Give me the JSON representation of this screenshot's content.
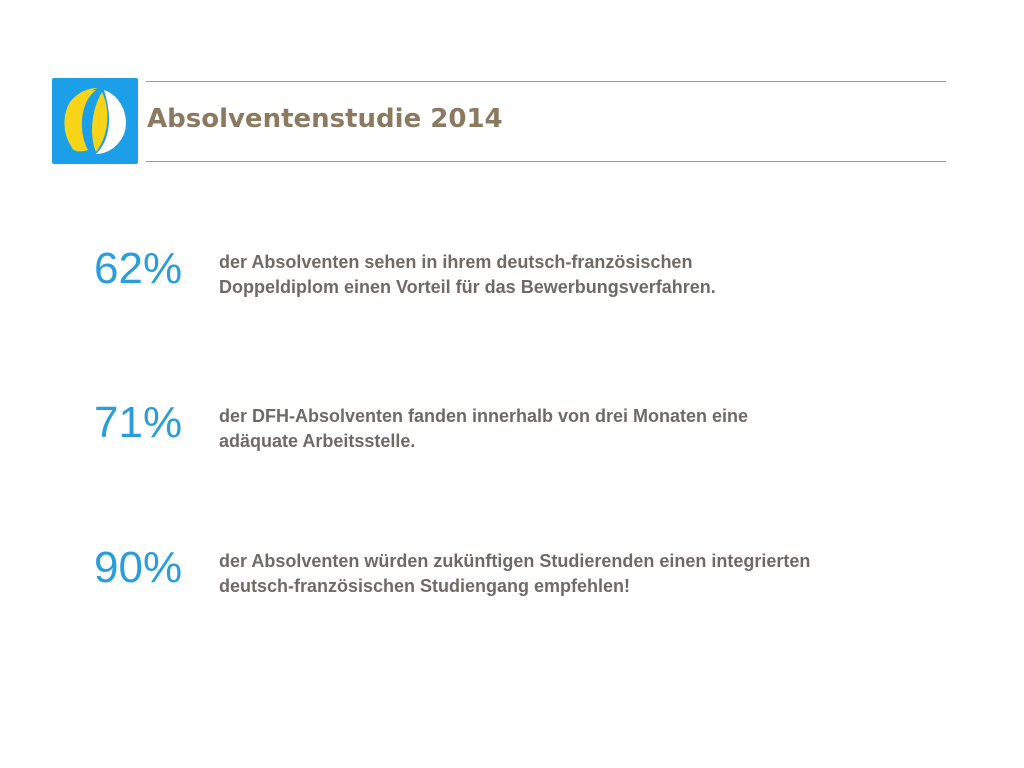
{
  "header": {
    "title": "Absolventenstudie 2014"
  },
  "logo": {
    "icon": "dfh-logo-icon",
    "colors": {
      "blue": "#1a9fe8",
      "yellow": "#f7d417",
      "white": "#ffffff"
    }
  },
  "stats": [
    {
      "value": "62%",
      "lines": [
        "der Absolventen sehen in ihrem deutsch-französischen",
        "Doppeldiplom einen Vorteil für das Bewerbungsverfahren."
      ]
    },
    {
      "value": "71%",
      "lines": [
        "der DFH-Absolventen fanden innerhalb von drei Monaten eine",
        "adäquate Arbeitsstelle."
      ]
    },
    {
      "value": "90%",
      "lines": [
        "der Absolventen würden zukünftigen Studierenden einen integrierten",
        "deutsch-französischen Studiengang empfehlen!"
      ]
    }
  ],
  "colors": {
    "accent": "#2a9ddc",
    "title": "#8c7a60",
    "body_text": "#6f6a66",
    "rule": "#a39a8b"
  }
}
